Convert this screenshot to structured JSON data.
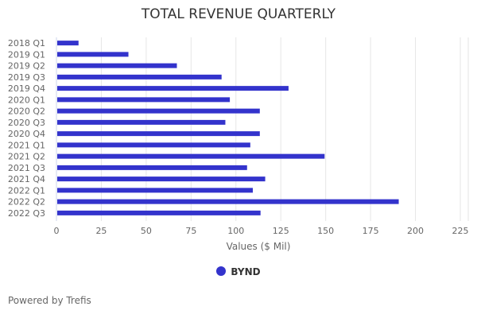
{
  "chart_data": {
    "type": "bar",
    "orientation": "horizontal",
    "title": "TOTAL REVENUE QUARTERLY",
    "xlabel": "Values ($ Mil)",
    "ylabel": "",
    "categories": [
      "2018 Q1",
      "2019 Q1",
      "2019 Q2",
      "2019 Q3",
      "2019 Q4",
      "2020 Q1",
      "2020 Q2",
      "2020 Q3",
      "2020 Q4",
      "2021 Q1",
      "2021 Q2",
      "2021 Q3",
      "2021 Q4",
      "2022 Q1",
      "2022 Q2",
      "2022 Q3"
    ],
    "series": [
      {
        "name": "BYND",
        "color": "#3333cc",
        "values": [
          12.3,
          40.1,
          67.1,
          92.0,
          129.3,
          96.6,
          113.3,
          94.1,
          113.3,
          108.0,
          149.4,
          106.2,
          116.3,
          109.4,
          190.7,
          113.7
        ]
      }
    ],
    "xlim": [
      0,
      225
    ],
    "xticks": [
      0,
      25,
      50,
      75,
      100,
      125,
      150,
      175,
      200,
      225
    ],
    "grid": true,
    "legend": "bottom-center"
  },
  "footer": {
    "credit": "Powered by Trefis"
  }
}
